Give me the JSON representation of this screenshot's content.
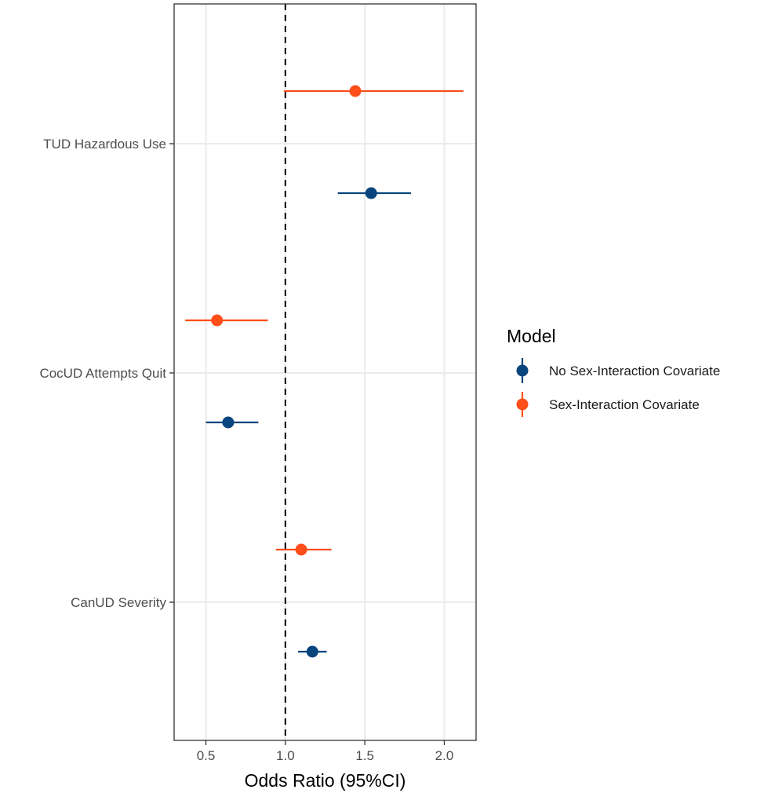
{
  "chart_data": {
    "type": "scatter",
    "subtype": "forest-plot",
    "title": "",
    "xlabel": "Odds Ratio (95%CI)",
    "ylabel": "",
    "xlim": [
      0.3,
      2.2
    ],
    "x_ticks": [
      0.5,
      1.0,
      1.5,
      2.0
    ],
    "x_tick_labels": [
      "0.5",
      "1.0",
      "1.5",
      "2.0"
    ],
    "reference_line": 1.0,
    "grid": true,
    "categories": [
      "TUD Hazardous Use",
      "CocUD Attempts Quit",
      "CanUD Severity"
    ],
    "legend": {
      "title": "Model",
      "placement": "right"
    },
    "series": [
      {
        "name": "No Sex-Interaction Covariate",
        "color": "#08457E",
        "points": [
          {
            "category": "TUD Hazardous Use",
            "estimate": 1.54,
            "lower": 1.33,
            "upper": 1.79
          },
          {
            "category": "CocUD Attempts Quit",
            "estimate": 0.64,
            "lower": 0.5,
            "upper": 0.83
          },
          {
            "category": "CanUD Severity",
            "estimate": 1.17,
            "lower": 1.08,
            "upper": 1.26
          }
        ]
      },
      {
        "name": "Sex-Interaction Covariate",
        "color": "#FF4E1A",
        "points": [
          {
            "category": "TUD Hazardous Use",
            "estimate": 1.44,
            "lower": 0.99,
            "upper": 2.12
          },
          {
            "category": "CocUD Attempts Quit",
            "estimate": 0.57,
            "lower": 0.37,
            "upper": 0.89
          },
          {
            "category": "CanUD Severity",
            "estimate": 1.1,
            "lower": 0.94,
            "upper": 1.29
          }
        ]
      }
    ]
  }
}
